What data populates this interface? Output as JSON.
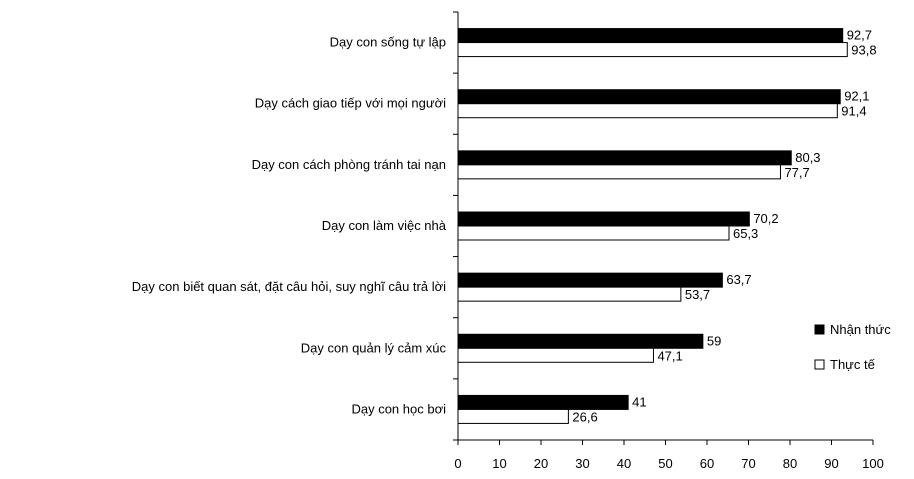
{
  "chart_data": {
    "type": "bar",
    "orientation": "horizontal",
    "categories": [
      "Dạy con sống tự lập",
      "Dạy cách giao tiếp với mọi người",
      "Dạy con cách phòng tránh tai nạn",
      "Dạy con làm việc nhà",
      "Dạy con biết quan sát, đặt câu hỏi, suy nghĩ câu trả lời",
      "Dạy con quản lý cảm xúc",
      "Dạy con học bơi"
    ],
    "series": [
      {
        "name": "Nhận thức",
        "color": "#000000",
        "values": [
          92.7,
          92.1,
          80.3,
          70.2,
          63.7,
          59,
          41
        ],
        "labels": [
          "92,7",
          "92,1",
          "80,3",
          "70,2",
          "63,7",
          "59",
          "41"
        ]
      },
      {
        "name": "Thực tế",
        "color": "#ffffff",
        "values": [
          93.8,
          91.4,
          77.7,
          65.3,
          53.7,
          47.1,
          26.6
        ],
        "labels": [
          "93,8",
          "91,4",
          "77,7",
          "65,3",
          "53,7",
          "47,1",
          "26,6"
        ]
      }
    ],
    "xlim": [
      0,
      100
    ],
    "xticks": [
      0,
      10,
      20,
      30,
      40,
      50,
      60,
      70,
      80,
      90,
      100
    ],
    "grid": false,
    "legend_position": "right"
  }
}
